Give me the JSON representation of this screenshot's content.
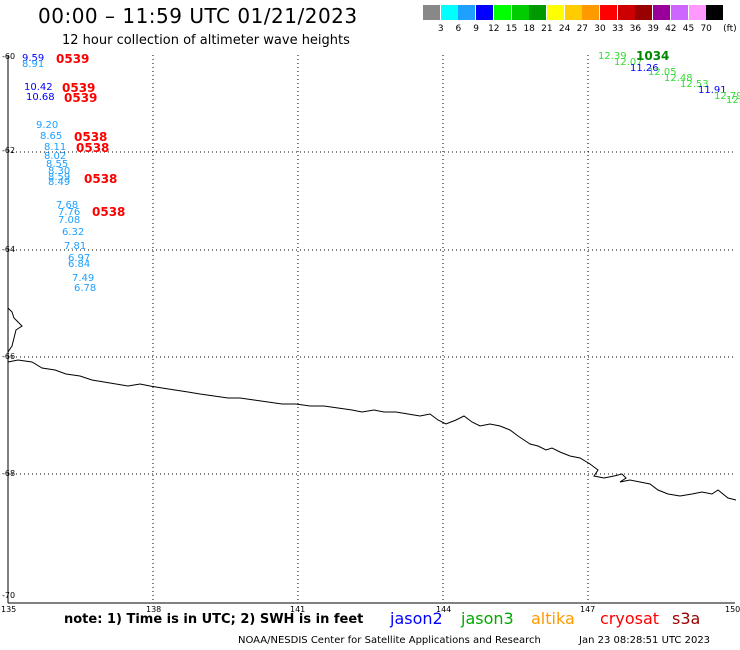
{
  "header": {
    "title": "00:00 – 11:59 UTC 01/21/2023",
    "subtitle": "12 hour collection of altimeter wave heights"
  },
  "legend": {
    "colors": [
      "#888888",
      "#00ffff",
      "#1ea0ff",
      "#0000ff",
      "#00ff00",
      "#00cc00",
      "#009900",
      "#ffff00",
      "#ffcc00",
      "#ff9900",
      "#ff0000",
      "#cc0000",
      "#990000",
      "#990099",
      "#cc66ff",
      "#ff99ff",
      "#000000"
    ],
    "labels": [
      "3",
      "6",
      "9",
      "12",
      "15",
      "18",
      "21",
      "24",
      "27",
      "30",
      "33",
      "36",
      "39",
      "42",
      "45",
      "70"
    ],
    "unit": "(ft)"
  },
  "axes": {
    "lat_labels": [
      "-60",
      "-62",
      "-64",
      "-66",
      "-68",
      "-70"
    ],
    "lon_labels": [
      "135",
      "138",
      "141",
      "144",
      "147",
      "150"
    ]
  },
  "observations": [
    {
      "text": "9.59",
      "color": "#0000ff"
    },
    {
      "text": "8.91",
      "color": "#1ea0ff"
    },
    {
      "text": "10.42",
      "color": "#0000ff"
    },
    {
      "text": "10.68",
      "color": "#0000ff"
    },
    {
      "text": "9.20",
      "color": "#1ea0ff"
    },
    {
      "text": "8.65",
      "color": "#1ea0ff"
    },
    {
      "text": "8.11",
      "color": "#1ea0ff"
    },
    {
      "text": "8.02",
      "color": "#1ea0ff"
    },
    {
      "text": "8.55",
      "color": "#1ea0ff"
    },
    {
      "text": "8.30",
      "color": "#1ea0ff"
    },
    {
      "text": "8.59",
      "color": "#1ea0ff"
    },
    {
      "text": "8.49",
      "color": "#1ea0ff"
    },
    {
      "text": "7.68",
      "color": "#1ea0ff"
    },
    {
      "text": "7.76",
      "color": "#1ea0ff"
    },
    {
      "text": "7.08",
      "color": "#1ea0ff"
    },
    {
      "text": "6.32",
      "color": "#1ea0ff"
    },
    {
      "text": "7.81",
      "color": "#1ea0ff"
    },
    {
      "text": "6.97",
      "color": "#1ea0ff"
    },
    {
      "text": "6.84",
      "color": "#1ea0ff"
    },
    {
      "text": "7.49",
      "color": "#1ea0ff"
    },
    {
      "text": "6.78",
      "color": "#1ea0ff"
    },
    {
      "text": "12.39",
      "color": "#33dd33"
    },
    {
      "text": "12.07",
      "color": "#33dd33"
    },
    {
      "text": "11.26",
      "color": "#0000ff"
    },
    {
      "text": "12.05",
      "color": "#33dd33"
    },
    {
      "text": "12.48",
      "color": "#33dd33"
    },
    {
      "text": "12.53",
      "color": "#33dd33"
    },
    {
      "text": "11.91",
      "color": "#0000ff"
    },
    {
      "text": "12.79",
      "color": "#33dd33"
    },
    {
      "text": "12.45",
      "color": "#33dd33"
    }
  ],
  "pass_times": [
    {
      "text": "0539",
      "color": "#ff0000"
    },
    {
      "text": "0539",
      "color": "#ff0000"
    },
    {
      "text": "0539",
      "color": "#ff0000"
    },
    {
      "text": "0538",
      "color": "#ff0000"
    },
    {
      "text": "0538",
      "color": "#ff0000"
    },
    {
      "text": "0538",
      "color": "#ff0000"
    },
    {
      "text": "0538",
      "color": "#ff0000"
    },
    {
      "text": "1034",
      "color": "#008800"
    }
  ],
  "footer": {
    "note": "note: 1) Time is in UTC; 2) SWH is in feet",
    "satellites": [
      {
        "name": "jason2",
        "color": "#0000ff"
      },
      {
        "name": "jason3",
        "color": "#00aa00"
      },
      {
        "name": "altika",
        "color": "#ff9900"
      },
      {
        "name": "cryosat",
        "color": "#ff0000"
      },
      {
        "name": "s3a",
        "color": "#990000"
      }
    ],
    "credit": "NOAA/NESDIS Center for Satellite Applications and Research",
    "timestamp": "Jan 23 08:28:51 UTC 2023"
  }
}
